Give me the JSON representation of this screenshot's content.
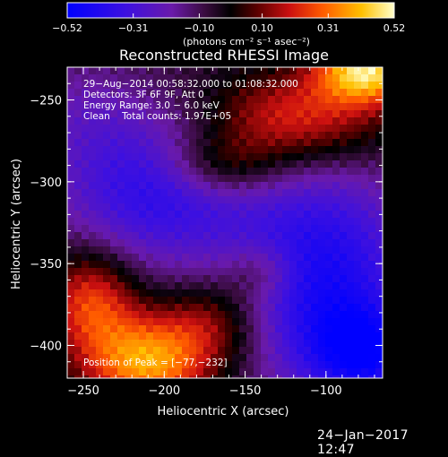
{
  "chart_data": {
    "type": "heatmap",
    "title": "Reconstructed RHESSI Image",
    "xlabel": "Heliocentric X (arcsec)",
    "ylabel": "Heliocentric Y (arcsec)",
    "xlim": [
      -260,
      -65
    ],
    "ylim": [
      -420,
      -230
    ],
    "x_ticks": [
      -250,
      -200,
      -150,
      -100
    ],
    "y_ticks": [
      -250,
      -300,
      -350,
      -400
    ],
    "x_tick_labels": [
      "−250",
      "−200",
      "−150",
      "−100"
    ],
    "y_tick_labels": [
      "−250",
      "−300",
      "−350",
      "−400"
    ],
    "colorbar": {
      "min": -0.52,
      "max": 0.52,
      "ticks": [
        -0.52,
        -0.31,
        -0.1,
        0.1,
        0.31,
        0.52
      ],
      "tick_labels": [
        "−0.52",
        "−0.31",
        "−0.10",
        "0.10",
        "0.31",
        "0.52"
      ],
      "unit_label": "(photons cm⁻² s⁻¹ asec⁻²)"
    },
    "annotations": {
      "time": "29−Aug−2014 00:58:32.000 to 01:08:32.000",
      "detectors": "Detectors: 3F 6F 9F, Att 0",
      "energy": "Energy Range: 3.0 − 6.0 keV",
      "clean": "Clean    Total counts: 1.97E+05",
      "peak": "Position of Peak = [−77,−232]"
    },
    "sources": [
      {
        "x": -75,
        "y": -232,
        "amp": 0.52,
        "sx": 22,
        "sy": 14
      },
      {
        "x": -120,
        "y": -262,
        "amp": 0.32,
        "sx": 40,
        "sy": 20
      },
      {
        "x": -165,
        "y": -290,
        "amp": 0.22,
        "sx": 25,
        "sy": 14
      },
      {
        "x": -210,
        "y": -410,
        "amp": 0.44,
        "sx": 28,
        "sy": 20
      },
      {
        "x": -245,
        "y": -372,
        "amp": 0.32,
        "sx": 20,
        "sy": 22
      },
      {
        "x": -170,
        "y": -385,
        "amp": 0.2,
        "sx": 22,
        "sy": 18
      },
      {
        "x": -140,
        "y": -355,
        "amp": 0.14,
        "sx": 15,
        "sy": 12
      },
      {
        "x": -205,
        "y": -305,
        "amp": -0.32,
        "sx": 45,
        "sy": 35
      },
      {
        "x": -100,
        "y": -360,
        "amp": -0.38,
        "sx": 40,
        "sy": 50
      },
      {
        "x": -75,
        "y": -405,
        "amp": -0.3,
        "sx": 25,
        "sy": 20
      },
      {
        "x": -255,
        "y": -255,
        "amp": -0.1,
        "sx": 30,
        "sy": 25
      }
    ],
    "background_level": -0.06
  },
  "footer": {
    "date": "24−Jan−2017 12:47"
  }
}
